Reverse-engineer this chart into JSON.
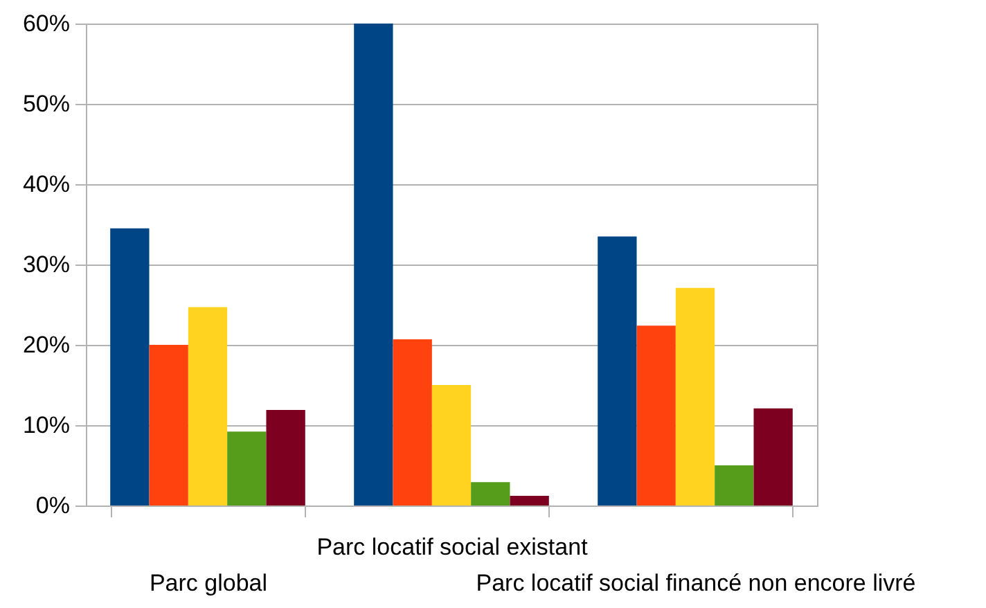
{
  "chart_data": {
    "type": "bar",
    "categories": [
      "Parc global",
      "Parc locatif social existant",
      "Parc locatif social financé non encore livré"
    ],
    "series": [
      {
        "color": "#004586",
        "values": [
          34.5,
          60,
          33.5
        ]
      },
      {
        "color": "#ff420e",
        "values": [
          20.0,
          20.7,
          22.4
        ]
      },
      {
        "color": "#ffd320",
        "values": [
          24.7,
          15.0,
          27.1
        ]
      },
      {
        "color": "#579d1c",
        "values": [
          9.2,
          2.9,
          5.0
        ]
      },
      {
        "color": "#7e0021",
        "values": [
          11.9,
          1.2,
          12.1
        ]
      }
    ],
    "ylim": [
      0,
      60
    ],
    "yticks": [
      {
        "value": 0,
        "label": "0%"
      },
      {
        "value": 10,
        "label": "10%"
      },
      {
        "value": 20,
        "label": "20%"
      },
      {
        "value": 30,
        "label": "30%"
      },
      {
        "value": 40,
        "label": "40%"
      },
      {
        "value": 50,
        "label": "50%"
      },
      {
        "value": 60,
        "label": "60%"
      }
    ],
    "grid": "y"
  }
}
